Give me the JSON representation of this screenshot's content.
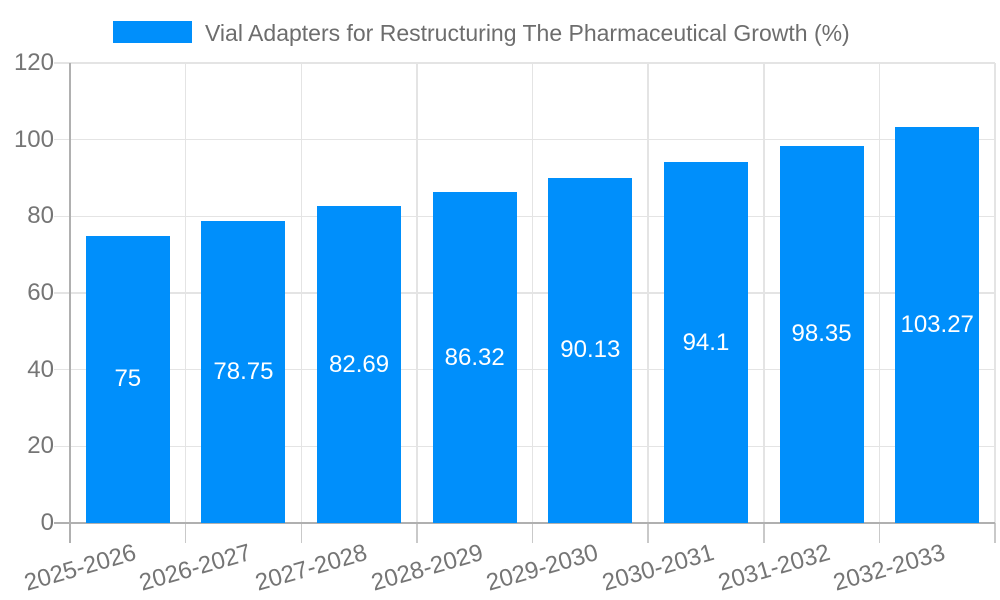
{
  "colors": {
    "bar": "#008FFB",
    "bar_label_text": "#ffffff",
    "axis_text": "#757575",
    "legend_text": "#6d6d6d",
    "gridline": "#e4e4e4",
    "axis_line": "#b0b0b0",
    "tick_stub": "#c9c9c9",
    "background": "#ffffff"
  },
  "legend": {
    "position": "top",
    "items": [
      {
        "label": "Vial Adapters for Restructuring The Pharmaceutical Growth (%)",
        "swatch_color": "#008FFB"
      }
    ]
  },
  "chart_data": {
    "type": "bar",
    "title": "Vial Adapters for Restructuring The Pharmaceutical Growth (%)",
    "categories": [
      "2025-2026",
      "2026-2027",
      "2027-2028",
      "2028-2029",
      "2029-2030",
      "2030-2031",
      "2031-2032",
      "2032-2033"
    ],
    "values": [
      75,
      78.75,
      82.69,
      86.32,
      90.13,
      94.1,
      98.35,
      103.27
    ],
    "bar_labels": [
      "75",
      "78.75",
      "82.69",
      "86.32",
      "90.13",
      "94.1",
      "98.35",
      "103.27"
    ],
    "bar_label_position": "inside-center",
    "xlabel": "",
    "ylabel": "",
    "ylim": [
      0,
      120
    ],
    "yticks": [
      0,
      20,
      40,
      60,
      80,
      100,
      120
    ],
    "grid": true,
    "x_tick_label_rotation_deg": -16,
    "legend_position": "top"
  }
}
